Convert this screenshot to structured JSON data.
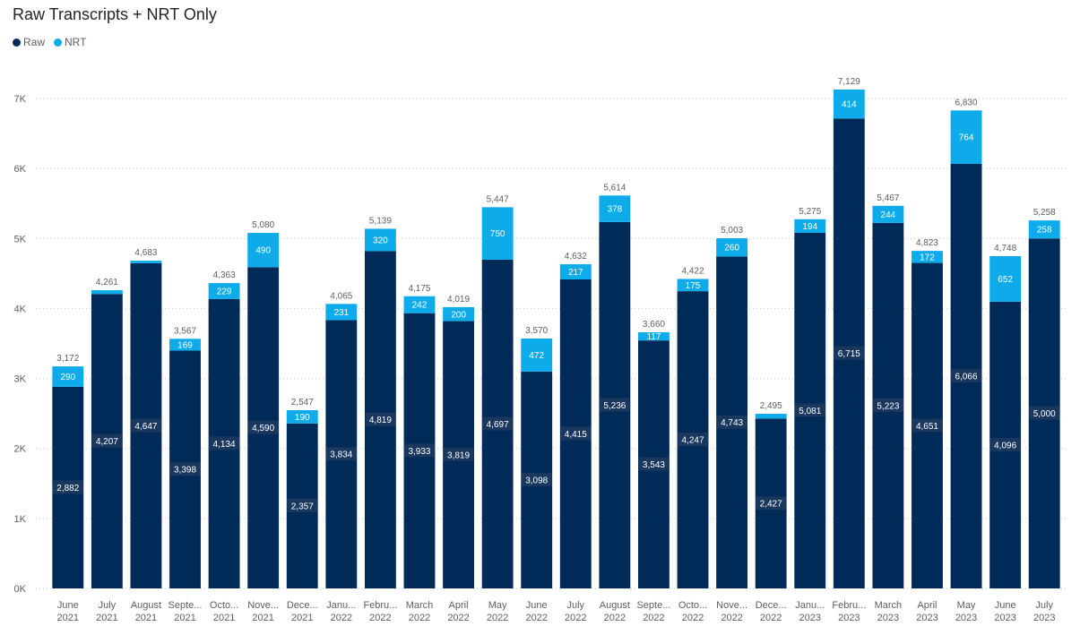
{
  "chart_data": {
    "type": "bar",
    "stacked": true,
    "title": "Raw Transcripts + NRT Only",
    "legend_position": "top-left",
    "ylim": [
      0,
      7000
    ],
    "y_ticks": [
      "0K",
      "1K",
      "2K",
      "3K",
      "4K",
      "5K",
      "6K",
      "7K"
    ],
    "y_tick_values": [
      0,
      1000,
      2000,
      3000,
      4000,
      5000,
      6000,
      7000
    ],
    "grid": true,
    "categories": [
      [
        "June",
        "2021"
      ],
      [
        "July",
        "2021"
      ],
      [
        "August",
        "2021"
      ],
      [
        "Septe...",
        "2021"
      ],
      [
        "Octo...",
        "2021"
      ],
      [
        "Nove...",
        "2021"
      ],
      [
        "Dece...",
        "2021"
      ],
      [
        "Janu...",
        "2022"
      ],
      [
        "Febru...",
        "2022"
      ],
      [
        "March",
        "2022"
      ],
      [
        "April",
        "2022"
      ],
      [
        "May",
        "2022"
      ],
      [
        "June",
        "2022"
      ],
      [
        "July",
        "2022"
      ],
      [
        "August",
        "2022"
      ],
      [
        "Septe...",
        "2022"
      ],
      [
        "Octo...",
        "2022"
      ],
      [
        "Nove...",
        "2022"
      ],
      [
        "Dece...",
        "2022"
      ],
      [
        "Janu...",
        "2023"
      ],
      [
        "Febru...",
        "2023"
      ],
      [
        "March",
        "2023"
      ],
      [
        "April",
        "2023"
      ],
      [
        "May",
        "2023"
      ],
      [
        "June",
        "2023"
      ],
      [
        "July",
        "2023"
      ]
    ],
    "series": [
      {
        "name": "Raw",
        "color": "#002b59",
        "values": [
          2882,
          4207,
          4647,
          3398,
          4134,
          4590,
          2357,
          3834,
          4819,
          3933,
          3819,
          4697,
          3098,
          4415,
          5236,
          3543,
          4247,
          4743,
          2427,
          5081,
          6715,
          5223,
          4651,
          6066,
          4096,
          5000
        ],
        "labels": [
          "2,882",
          "4,207",
          "4,647",
          "3,398",
          "4,134",
          "4,590",
          "2,357",
          "3,834",
          "4,819",
          "3,933",
          "3,819",
          "4,697",
          "3,098",
          "4,415",
          "5,236",
          "3,543",
          "4,247",
          "4,743",
          "2,427",
          "5,081",
          "6,715",
          "5,223",
          "4,651",
          "6,066",
          "4,096",
          "5,000"
        ]
      },
      {
        "name": "NRT",
        "color": "#0eabeb",
        "values": [
          290,
          54,
          36,
          169,
          229,
          490,
          190,
          231,
          320,
          242,
          200,
          750,
          472,
          217,
          378,
          117,
          175,
          260,
          68,
          194,
          414,
          244,
          172,
          764,
          652,
          258
        ],
        "labels": [
          "290",
          "",
          "",
          "169",
          "229",
          "490",
          "190",
          "231",
          "320",
          "242",
          "200",
          "750",
          "472",
          "217",
          "378",
          "117",
          "175",
          "260",
          "",
          "194",
          "414",
          "244",
          "172",
          "764",
          "652",
          "258"
        ]
      }
    ],
    "totals": [
      "3,172",
      "4,261",
      "4,683",
      "3,567",
      "4,363",
      "5,080",
      "2,547",
      "4,065",
      "5,139",
      "4,175",
      "4,019",
      "5,447",
      "3,570",
      "4,632",
      "5,614",
      "3,660",
      "4,422",
      "5,003",
      "2,495",
      "5,275",
      "7,129",
      "5,467",
      "4,823",
      "6,830",
      "4,748",
      "5,258"
    ]
  }
}
